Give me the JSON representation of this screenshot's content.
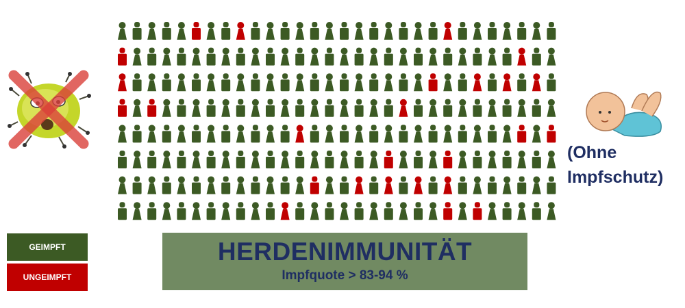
{
  "diagram": {
    "grid": {
      "rows": 8,
      "cols": 30,
      "unvaccinated": [
        [
          0,
          5
        ],
        [
          0,
          8
        ],
        [
          0,
          22
        ],
        [
          1,
          0
        ],
        [
          1,
          27
        ],
        [
          2,
          0
        ],
        [
          2,
          21
        ],
        [
          2,
          24
        ],
        [
          2,
          26
        ],
        [
          2,
          28
        ],
        [
          3,
          0
        ],
        [
          3,
          2
        ],
        [
          3,
          19
        ],
        [
          4,
          12
        ],
        [
          4,
          27
        ],
        [
          4,
          29
        ],
        [
          5,
          18
        ],
        [
          5,
          22
        ],
        [
          6,
          13
        ],
        [
          6,
          16
        ],
        [
          6,
          18
        ],
        [
          6,
          20
        ],
        [
          6,
          22
        ],
        [
          7,
          11
        ],
        [
          7,
          22
        ],
        [
          7,
          24
        ]
      ],
      "colors": {
        "vaccinated": "#3c5a24",
        "unvaccinated": "#c00000"
      }
    },
    "legend": {
      "vaccinated_label": "GEIMPFT",
      "unvaccinated_label": "UNGEIMPFT"
    },
    "banner": {
      "title": "HERDENIMMUNITÄT",
      "subtitle": "Impfquote > 83-94 %"
    },
    "baby_note": {
      "line1": "(Ohne",
      "line2": "Impfschutz)"
    },
    "icons": {
      "virus": "crossed-out-virus-icon",
      "baby": "baby-icon"
    }
  }
}
